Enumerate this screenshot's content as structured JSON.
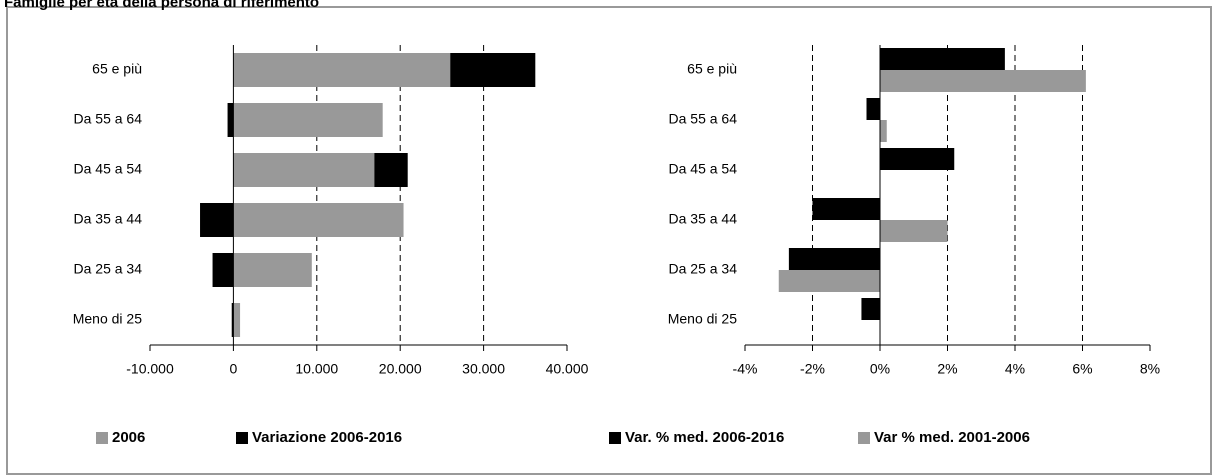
{
  "title": "Famiglie per età della persona di riferimento",
  "chart_data": [
    {
      "type": "bar",
      "orientation": "horizontal",
      "stacked": true,
      "categories": [
        "65 e più",
        "Da 55 a 64",
        "Da 45 a 54",
        "Da 35 a 44",
        "Da 25 a 34",
        "Meno di 25"
      ],
      "series": [
        {
          "name": "2006",
          "color": "#999999",
          "values": [
            26000,
            17900,
            16900,
            20400,
            9400,
            800
          ]
        },
        {
          "name": "Variazione 2006-2016",
          "color": "#000000",
          "values": [
            10200,
            -700,
            4000,
            -4000,
            -2500,
            -200
          ]
        }
      ],
      "xlim": [
        -10000,
        40000
      ],
      "xticks": [
        {
          "value": -10000,
          "label": "-10.000"
        },
        0,
        {
          "value": 10000,
          "label": "10.000"
        },
        {
          "value": 20000,
          "label": "20.000"
        },
        {
          "value": 30000,
          "label": "30.000"
        },
        {
          "value": 40000,
          "label": "40.000"
        }
      ],
      "grid": true,
      "legend": "bottom"
    },
    {
      "type": "bar",
      "orientation": "horizontal",
      "stacked": false,
      "categories": [
        "65 e più",
        "Da 55 a 64",
        "Da 45 a 54",
        "Da 35 a 44",
        "Da 25 a 34",
        "Meno di 25"
      ],
      "series": [
        {
          "name": "Var. % med. 2006-2016",
          "color": "#000000",
          "values": [
            3.7,
            -0.4,
            2.2,
            -2.0,
            -2.7,
            -0.55
          ]
        },
        {
          "name": "Var % med. 2001-2006",
          "color": "#999999",
          "values": [
            6.1,
            0.2,
            0,
            2.0,
            -3.0,
            0
          ]
        }
      ],
      "legend_order": [
        1,
        0
      ],
      "xlim": [
        -4,
        8
      ],
      "xticks": [
        {
          "value": -4,
          "label": "-4%"
        },
        {
          "value": -2,
          "label": "-2%"
        },
        {
          "value": 0,
          "label": "0%"
        },
        {
          "value": 2,
          "label": "2%"
        },
        {
          "value": 4,
          "label": "4%"
        },
        {
          "value": 6,
          "label": "6%"
        },
        {
          "value": 8,
          "label": "8%"
        }
      ],
      "grid": true,
      "legend": "bottom"
    }
  ]
}
